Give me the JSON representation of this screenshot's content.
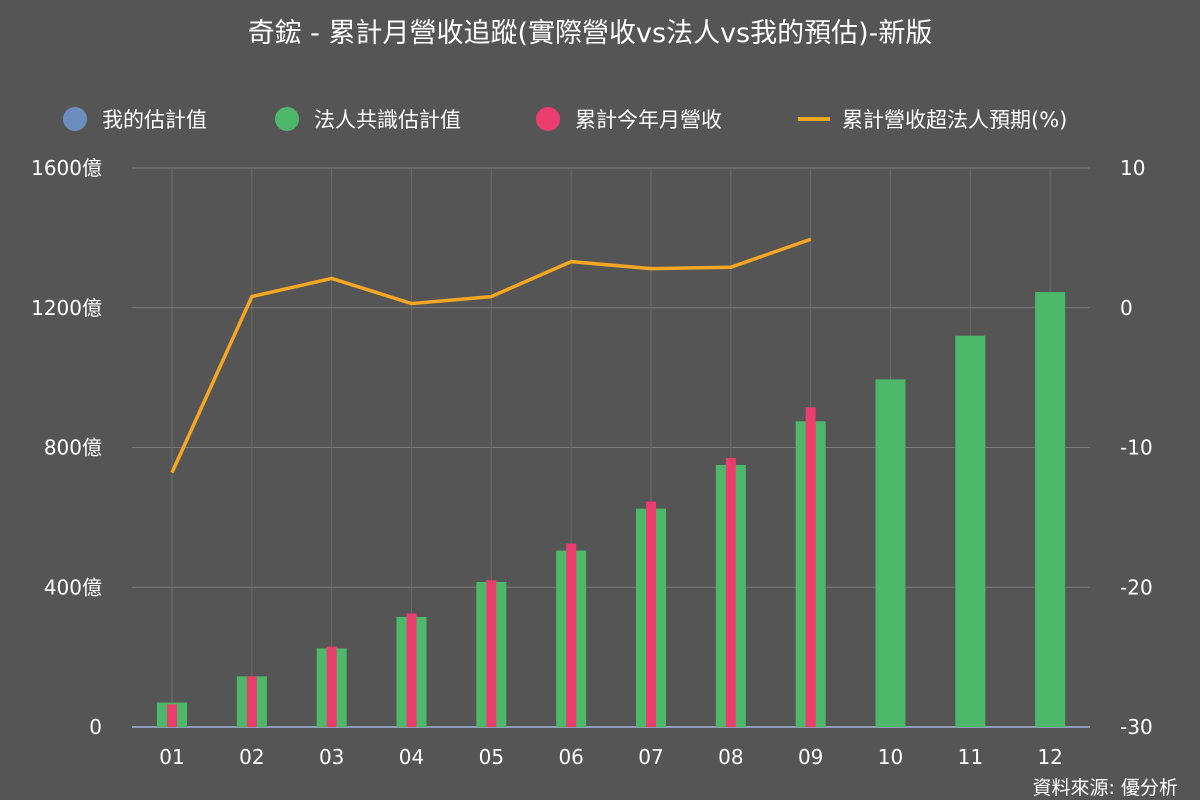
{
  "chart_data": {
    "type": "bar",
    "title": "奇鋐 - 累計月營收追蹤(實際營收vs法人vs我的預估)-新版",
    "categories": [
      "01",
      "02",
      "03",
      "04",
      "05",
      "06",
      "07",
      "08",
      "09",
      "10",
      "11",
      "12"
    ],
    "series": [
      {
        "name": "我的估計值",
        "type": "bar",
        "color": "#6C8EBF",
        "values": [
          null,
          null,
          null,
          null,
          null,
          null,
          null,
          null,
          null,
          null,
          null,
          null
        ]
      },
      {
        "name": "法人共識估計值",
        "type": "bar",
        "color": "#4DB86A",
        "values": [
          70,
          145,
          225,
          315,
          415,
          505,
          625,
          750,
          875,
          995,
          1120,
          1245
        ]
      },
      {
        "name": "累計今年月營收",
        "type": "bar",
        "color": "#EC3D6F",
        "values": [
          65,
          145,
          230,
          325,
          420,
          525,
          645,
          770,
          915,
          null,
          null,
          null
        ]
      },
      {
        "name": "累計營收超法人預期(%)",
        "type": "line",
        "axis": "right",
        "color": "#F5A623",
        "values": [
          -11.8,
          0.8,
          2.1,
          0.3,
          0.8,
          3.3,
          2.8,
          2.9,
          4.9,
          null,
          null,
          null
        ]
      }
    ],
    "y_left": {
      "min": 0,
      "max": 1600,
      "ticks": [
        "0",
        "400億",
        "800億",
        "1200億",
        "1600億"
      ],
      "tick_values": [
        0,
        400,
        800,
        1200,
        1600
      ]
    },
    "y_right": {
      "min": -30,
      "max": 10,
      "ticks": [
        "-30",
        "-20",
        "-10",
        "0",
        "10"
      ],
      "tick_values": [
        -30,
        -20,
        -10,
        0,
        10
      ]
    },
    "grid": true,
    "legend_position": "top",
    "source": "資料來源: 優分析"
  }
}
